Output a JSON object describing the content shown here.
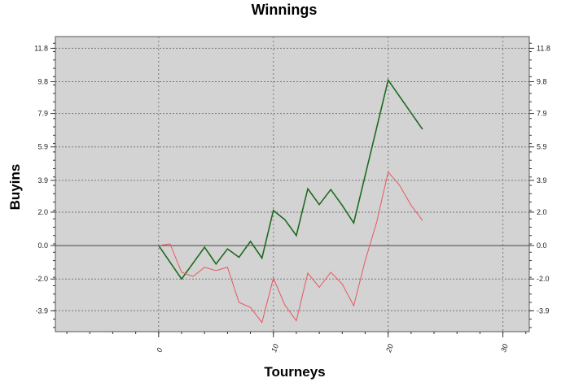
{
  "chart_data": {
    "type": "line",
    "title": "Winnings",
    "xlabel": "Tourneys",
    "ylabel": "Buyins",
    "xlim": [
      -9,
      32.3
    ],
    "ylim": [
      -5.15,
      12.5
    ],
    "x_ticks": [
      0,
      10,
      20,
      30
    ],
    "x_tick_labels": [
      "0",
      "10",
      "20",
      "30"
    ],
    "y_ticks": [
      11.8,
      9.8,
      7.9,
      5.9,
      3.9,
      2.0,
      0.0,
      -2.0,
      -3.9
    ],
    "y_tick_labels": [
      "11.8",
      "9.8",
      "7.9",
      "5.9",
      "3.9",
      "2.0",
      "0.0",
      "-2.0",
      "-3.9"
    ],
    "grid": true,
    "background": "#d3d3d3",
    "series": [
      {
        "color": "#1e6b1e",
        "x": [
          0,
          2,
          4,
          5,
          6,
          7,
          8,
          9,
          10,
          11,
          12,
          13,
          14,
          15,
          16,
          17,
          20,
          23
        ],
        "y": [
          0.0,
          -2.0,
          -0.1,
          -1.1,
          -0.2,
          -0.7,
          0.25,
          -0.75,
          2.1,
          1.55,
          0.6,
          3.4,
          2.45,
          3.35,
          2.4,
          1.35,
          9.9,
          6.95
        ]
      },
      {
        "color": "#e8575e",
        "x": [
          0,
          1,
          2,
          3,
          4,
          5,
          6,
          7,
          8,
          9,
          10,
          11,
          12,
          13,
          14,
          15,
          16,
          17,
          18,
          19,
          20,
          21,
          22,
          23
        ],
        "y": [
          0.0,
          0.1,
          -1.6,
          -1.85,
          -1.3,
          -1.5,
          -1.3,
          -3.4,
          -3.7,
          -4.6,
          -1.95,
          -3.55,
          -4.5,
          -1.65,
          -2.5,
          -1.6,
          -2.3,
          -3.6,
          -0.9,
          1.4,
          4.4,
          3.6,
          2.4,
          1.5
        ]
      }
    ]
  }
}
